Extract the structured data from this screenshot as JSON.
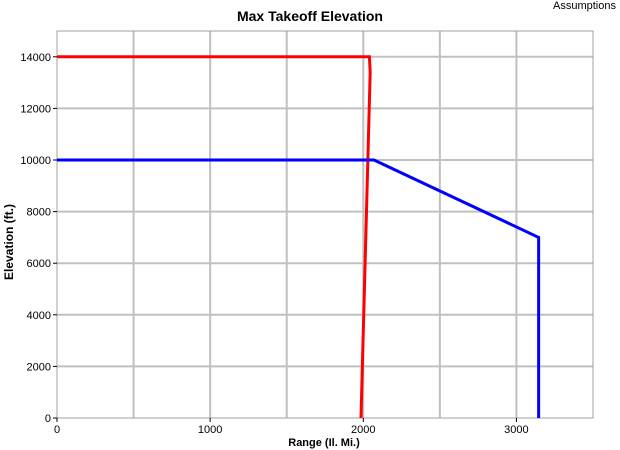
{
  "header": {
    "assumptions_label": "Assumptions"
  },
  "chart_data": {
    "type": "line",
    "title": "Max Takeoff Elevation",
    "xlabel": "Range (Il. Mi.)",
    "ylabel": "Elevation (ft.)",
    "xlim": [
      0,
      3500
    ],
    "ylim": [
      0,
      15000
    ],
    "x_ticks": [
      0,
      1000,
      2000,
      3000
    ],
    "x_tick_labels": [
      "0",
      "1000",
      "2000",
      "3000"
    ],
    "x_grid_step": 500,
    "y_ticks": [
      0,
      2000,
      4000,
      6000,
      8000,
      10000,
      12000,
      14000
    ],
    "y_tick_labels": [
      "0",
      "2000",
      "4000",
      "6000",
      "8000",
      "10000",
      "12000",
      "14000"
    ],
    "y_grid_step": 2000,
    "grid": true,
    "series": [
      {
        "color": "#ff0000",
        "points": [
          [
            0,
            14000
          ],
          [
            2040,
            14000
          ],
          [
            2045,
            13400
          ],
          [
            1985,
            0
          ]
        ]
      },
      {
        "color": "#0000ff",
        "points": [
          [
            0,
            10000
          ],
          [
            2070,
            10000
          ],
          [
            3145,
            7000
          ],
          [
            3145,
            0
          ]
        ]
      }
    ]
  }
}
